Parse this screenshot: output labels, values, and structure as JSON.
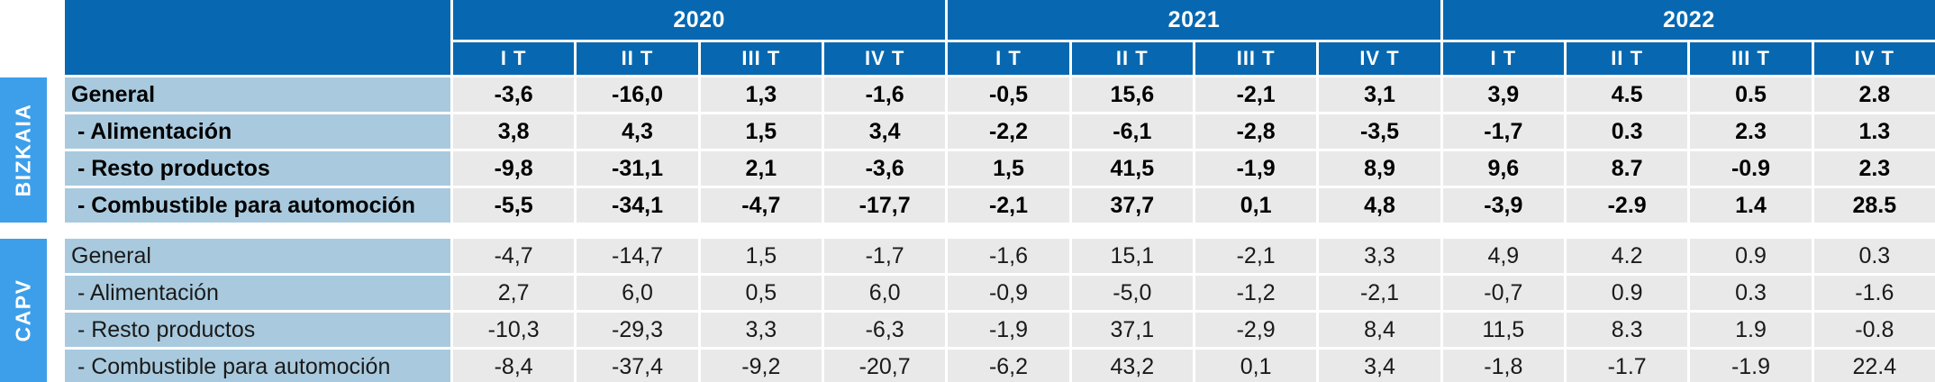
{
  "colors": {
    "header_blue": "#0768b1",
    "side_label_blue": "#3d9fea",
    "row_label_blue": "#a9cade",
    "data_cell_gray": "#e9e9e9"
  },
  "chart_data": {
    "type": "table",
    "title": "",
    "years": [
      "2020",
      "2021",
      "2022"
    ],
    "quarters": [
      "I T",
      "II T",
      "III T",
      "IV T"
    ],
    "layout": {
      "grid": "off",
      "decimal_note": "comma decimals except last three 2022 quarters which use periods"
    },
    "sections": [
      {
        "name": "BIZKAIA",
        "rows": [
          {
            "label": "General",
            "values": [
              "-3,6",
              "-16,0",
              "1,3",
              "-1,6",
              "-0,5",
              "15,6",
              "-2,1",
              "3,1",
              "3,9",
              "4.5",
              "0.5",
              "2.8"
            ]
          },
          {
            "label": " - Alimentación",
            "values": [
              "3,8",
              "4,3",
              "1,5",
              "3,4",
              "-2,2",
              "-6,1",
              "-2,8",
              "-3,5",
              "-1,7",
              "0.3",
              "2.3",
              "1.3"
            ]
          },
          {
            "label": " - Resto productos",
            "values": [
              "-9,8",
              "-31,1",
              "2,1",
              "-3,6",
              "1,5",
              "41,5",
              "-1,9",
              "8,9",
              "9,6",
              "8.7",
              "-0.9",
              "2.3"
            ]
          },
          {
            "label": " - Combustible para automoción",
            "values": [
              "-5,5",
              "-34,1",
              "-4,7",
              "-17,7",
              "-2,1",
              "37,7",
              "0,1",
              "4,8",
              "-3,9",
              "-2.9",
              "1.4",
              "28.5"
            ]
          }
        ]
      },
      {
        "name": "CAPV",
        "rows": [
          {
            "label": "General",
            "values": [
              "-4,7",
              "-14,7",
              "1,5",
              "-1,7",
              "-1,6",
              "15,1",
              "-2,1",
              "3,3",
              "4,9",
              "4.2",
              "0.9",
              "0.3"
            ]
          },
          {
            "label": " - Alimentación",
            "values": [
              "2,7",
              "6,0",
              "0,5",
              "6,0",
              "-0,9",
              "-5,0",
              "-1,2",
              "-2,1",
              "-0,7",
              "0.9",
              "0.3",
              "-1.6"
            ]
          },
          {
            "label": " - Resto productos",
            "values": [
              "-10,3",
              "-29,3",
              "3,3",
              "-6,3",
              "-1,9",
              "37,1",
              "-2,9",
              "8,4",
              "11,5",
              "8.3",
              "1.9",
              "-0.8"
            ]
          },
          {
            "label": " - Combustible para automoción",
            "values": [
              "-8,4",
              "-37,4",
              "-9,2",
              "-20,7",
              "-6,2",
              "43,2",
              "0,1",
              "3,4",
              "-1,8",
              "-1.7",
              "-1.9",
              "22.4"
            ]
          }
        ]
      }
    ]
  }
}
